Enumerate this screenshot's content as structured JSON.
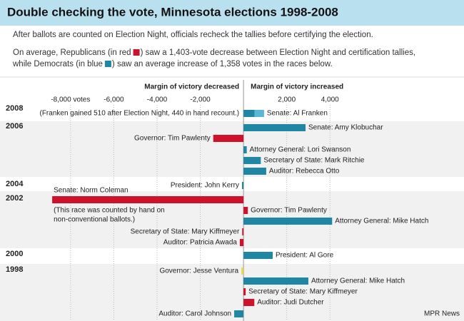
{
  "chart_data": {
    "type": "bar",
    "title": "Double checking the vote, Minnesota elections 1998-2008",
    "intro": "After ballots are counted on Election Night, officials recheck the tallies before certifying the election.",
    "summary_parts": [
      "On average, Republicans (in red",
      ") saw a 1,403-vote decrease between Election Night and certification tallies, while Democrats (in blue",
      ") saw an average increase of 1,358 votes in the races below."
    ],
    "republican_color": "#d0112b",
    "democrat_color": "#1f87a3",
    "left_heading": "Margin of victory decreased",
    "right_heading": "Margin of victory increased",
    "source": "MPR News",
    "xlim": [
      -11000,
      10200
    ],
    "xticks": [
      {
        "value": -8000,
        "label": "-8,000 votes"
      },
      {
        "value": -6000,
        "label": "-6,000"
      },
      {
        "value": -4000,
        "label": "-4,000"
      },
      {
        "value": -2000,
        "label": "-2,000"
      },
      {
        "value": 2000,
        "label": "2,000"
      },
      {
        "value": 4000,
        "label": "4,000"
      }
    ],
    "grid": true,
    "groups": [
      {
        "name": "2008",
        "rows": [
          {
            "label": "Senate: Al Franken",
            "values": [
              510,
              440
            ],
            "colors": [
              "#1f87a3",
              "#5ab6d6"
            ],
            "note": [
              "(Franken gained 510 after Election Night, 440 in hand recount.)"
            ]
          }
        ]
      },
      {
        "name": "2006",
        "rows": [
          {
            "label": "Senate: Amy Klobuchar",
            "values": [
              2870
            ],
            "colors": [
              "#1f87a3"
            ]
          },
          {
            "label": "Governor: Tim Pawlenty",
            "values": [
              -1400
            ],
            "colors": [
              "#d0112b"
            ]
          },
          {
            "label": "Attorney General: Lori Swanson",
            "values": [
              150
            ],
            "colors": [
              "#1f87a3"
            ]
          },
          {
            "label": "Secretary of State: Mark Ritchie",
            "values": [
              800
            ],
            "colors": [
              "#1f87a3"
            ]
          },
          {
            "label": "Auditor: Rebecca Otto",
            "values": [
              1050
            ],
            "colors": [
              "#1f87a3"
            ]
          }
        ]
      },
      {
        "name": "2004",
        "rows": [
          {
            "label": "President: John Kerry",
            "values": [
              -70
            ],
            "colors": [
              "#1f87a3"
            ]
          }
        ]
      },
      {
        "name": "2002",
        "rows": [
          {
            "label": "Senate: Norm Coleman",
            "values": [
              -8850
            ],
            "colors": [
              "#d0112b"
            ],
            "note": [
              "(This race was counted by hand on",
              "non-conventional ballots.)"
            ]
          },
          {
            "label": "Governor: Tim Pawlenty",
            "values": [
              200
            ],
            "colors": [
              "#d0112b"
            ]
          },
          {
            "label": "Attorney General: Mike  Hatch",
            "values": [
              4100
            ],
            "colors": [
              "#1f87a3"
            ]
          },
          {
            "label": "Secretary of State: Mary Kiffmeyer",
            "values": [
              -60
            ],
            "colors": [
              "#d0112b"
            ]
          },
          {
            "label": "Auditor: Patricia Awada",
            "values": [
              -170
            ],
            "colors": [
              "#d0112b"
            ]
          }
        ]
      },
      {
        "name": "2000",
        "rows": [
          {
            "label": "President: Al Gore",
            "values": [
              1350
            ],
            "colors": [
              "#1f87a3"
            ]
          }
        ]
      },
      {
        "name": "1998",
        "rows": [
          {
            "label": "Governor: Jesse Ventura",
            "values": [
              -100
            ],
            "colors": [
              "#e8d84a"
            ]
          },
          {
            "label": "Attorney General: Mike Hatch",
            "values": [
              3000
            ],
            "colors": [
              "#1f87a3"
            ]
          },
          {
            "label": "Secretary of State: Mary Kiffmeyer",
            "values": [
              100
            ],
            "colors": [
              "#d0112b"
            ]
          },
          {
            "label": "Auditor: Judi Dutcher",
            "values": [
              500
            ],
            "colors": [
              "#d0112b"
            ]
          },
          {
            "label": "Auditor: Carol Johnson",
            "values": [
              -430
            ],
            "colors": [
              "#1f87a3"
            ]
          }
        ]
      }
    ]
  }
}
